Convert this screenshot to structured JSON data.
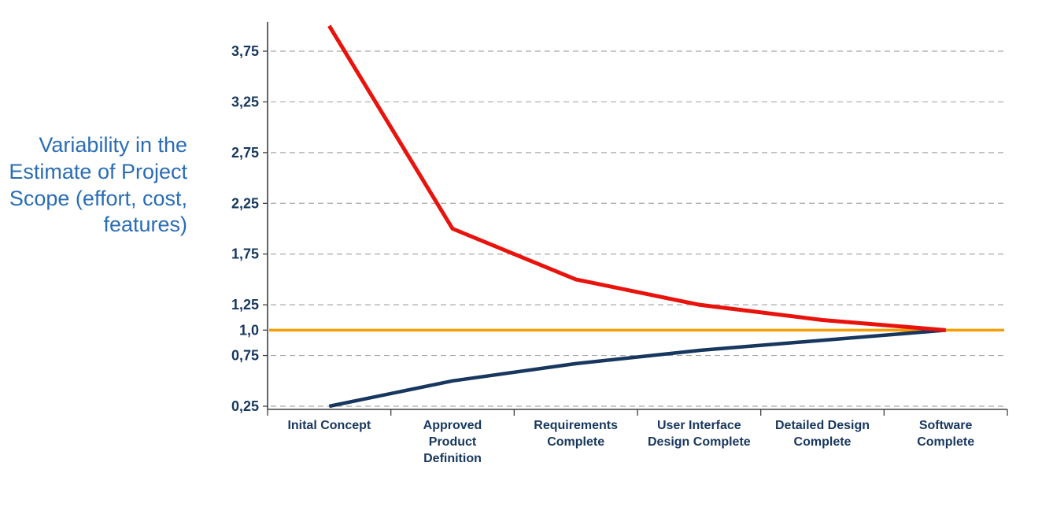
{
  "chart_data": {
    "type": "line",
    "title": "",
    "xlabel": "",
    "ylabel": "Variability in the Estimate of Project Scope (effort, cost, features)",
    "categories": [
      "Inital Concept",
      "Approved Product Definition",
      "Requirements Complete",
      "User Interface Design Complete",
      "Detailed Design Complete",
      "Software Complete"
    ],
    "series": [
      {
        "name": "upper-uncertainty-bound",
        "color": "#e8130c",
        "width": 5,
        "values": [
          4.0,
          2.0,
          1.5,
          1.25,
          1.1,
          1.0
        ]
      },
      {
        "name": "lower-uncertainty-bound",
        "color": "#17375e",
        "width": 4.5,
        "values": [
          0.25,
          0.5,
          0.67,
          0.8,
          0.9,
          1.0
        ]
      },
      {
        "name": "final-estimate-baseline",
        "color": "#f59e00",
        "width": 3.5,
        "values": [
          1.0,
          1.0,
          1.0,
          1.0,
          1.0,
          1.0
        ],
        "full_width": true
      }
    ],
    "yticks": [
      {
        "v": 3.75,
        "label": "3,75"
      },
      {
        "v": 3.25,
        "label": "3,25"
      },
      {
        "v": 2.75,
        "label": "2,75"
      },
      {
        "v": 2.25,
        "label": "2,25"
      },
      {
        "v": 1.75,
        "label": "1,75"
      },
      {
        "v": 1.25,
        "label": "1,25"
      },
      {
        "v": 1.0,
        "label": "1,0"
      },
      {
        "v": 0.75,
        "label": "0,75"
      },
      {
        "v": 0.25,
        "label": "0,25"
      }
    ],
    "ylim": [
      0.25,
      4.0
    ],
    "grid": "dashed-horizontal",
    "legend": "none",
    "colors": {
      "axis": "#404040",
      "gridline": "#a9a9a9",
      "tick_text": "#17375e",
      "ylabel_text": "#2a6db5"
    }
  }
}
